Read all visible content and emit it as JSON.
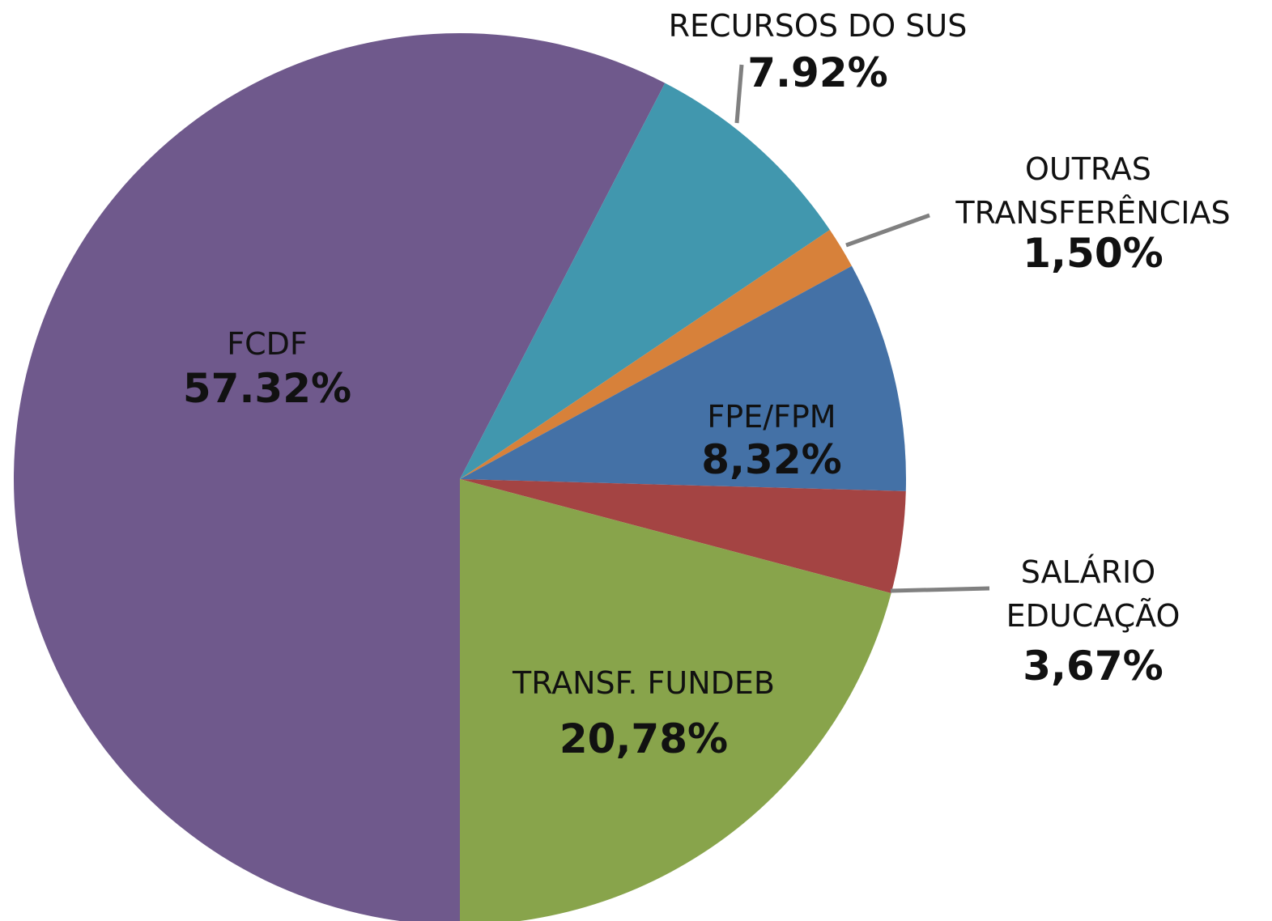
{
  "chart_data": {
    "type": "pie",
    "categories": [
      "FCDF",
      "RECURSOS DO SUS",
      "OUTRAS TRANSFERÊNCIAS",
      "FPE/FPM",
      "SALÁRIO EDUCAÇÃO",
      "TRANSF. FUNDEB"
    ],
    "values": [
      57.32,
      7.92,
      1.5,
      8.32,
      3.67,
      20.78
    ],
    "value_labels": [
      "57.32%",
      "7.92%",
      "1,50%",
      "8,32%",
      "3,67%",
      "20,78%"
    ],
    "colors": [
      "#6f598c",
      "#4197ae",
      "#d7813a",
      "#4471a6",
      "#a44443",
      "#88a44b"
    ]
  }
}
